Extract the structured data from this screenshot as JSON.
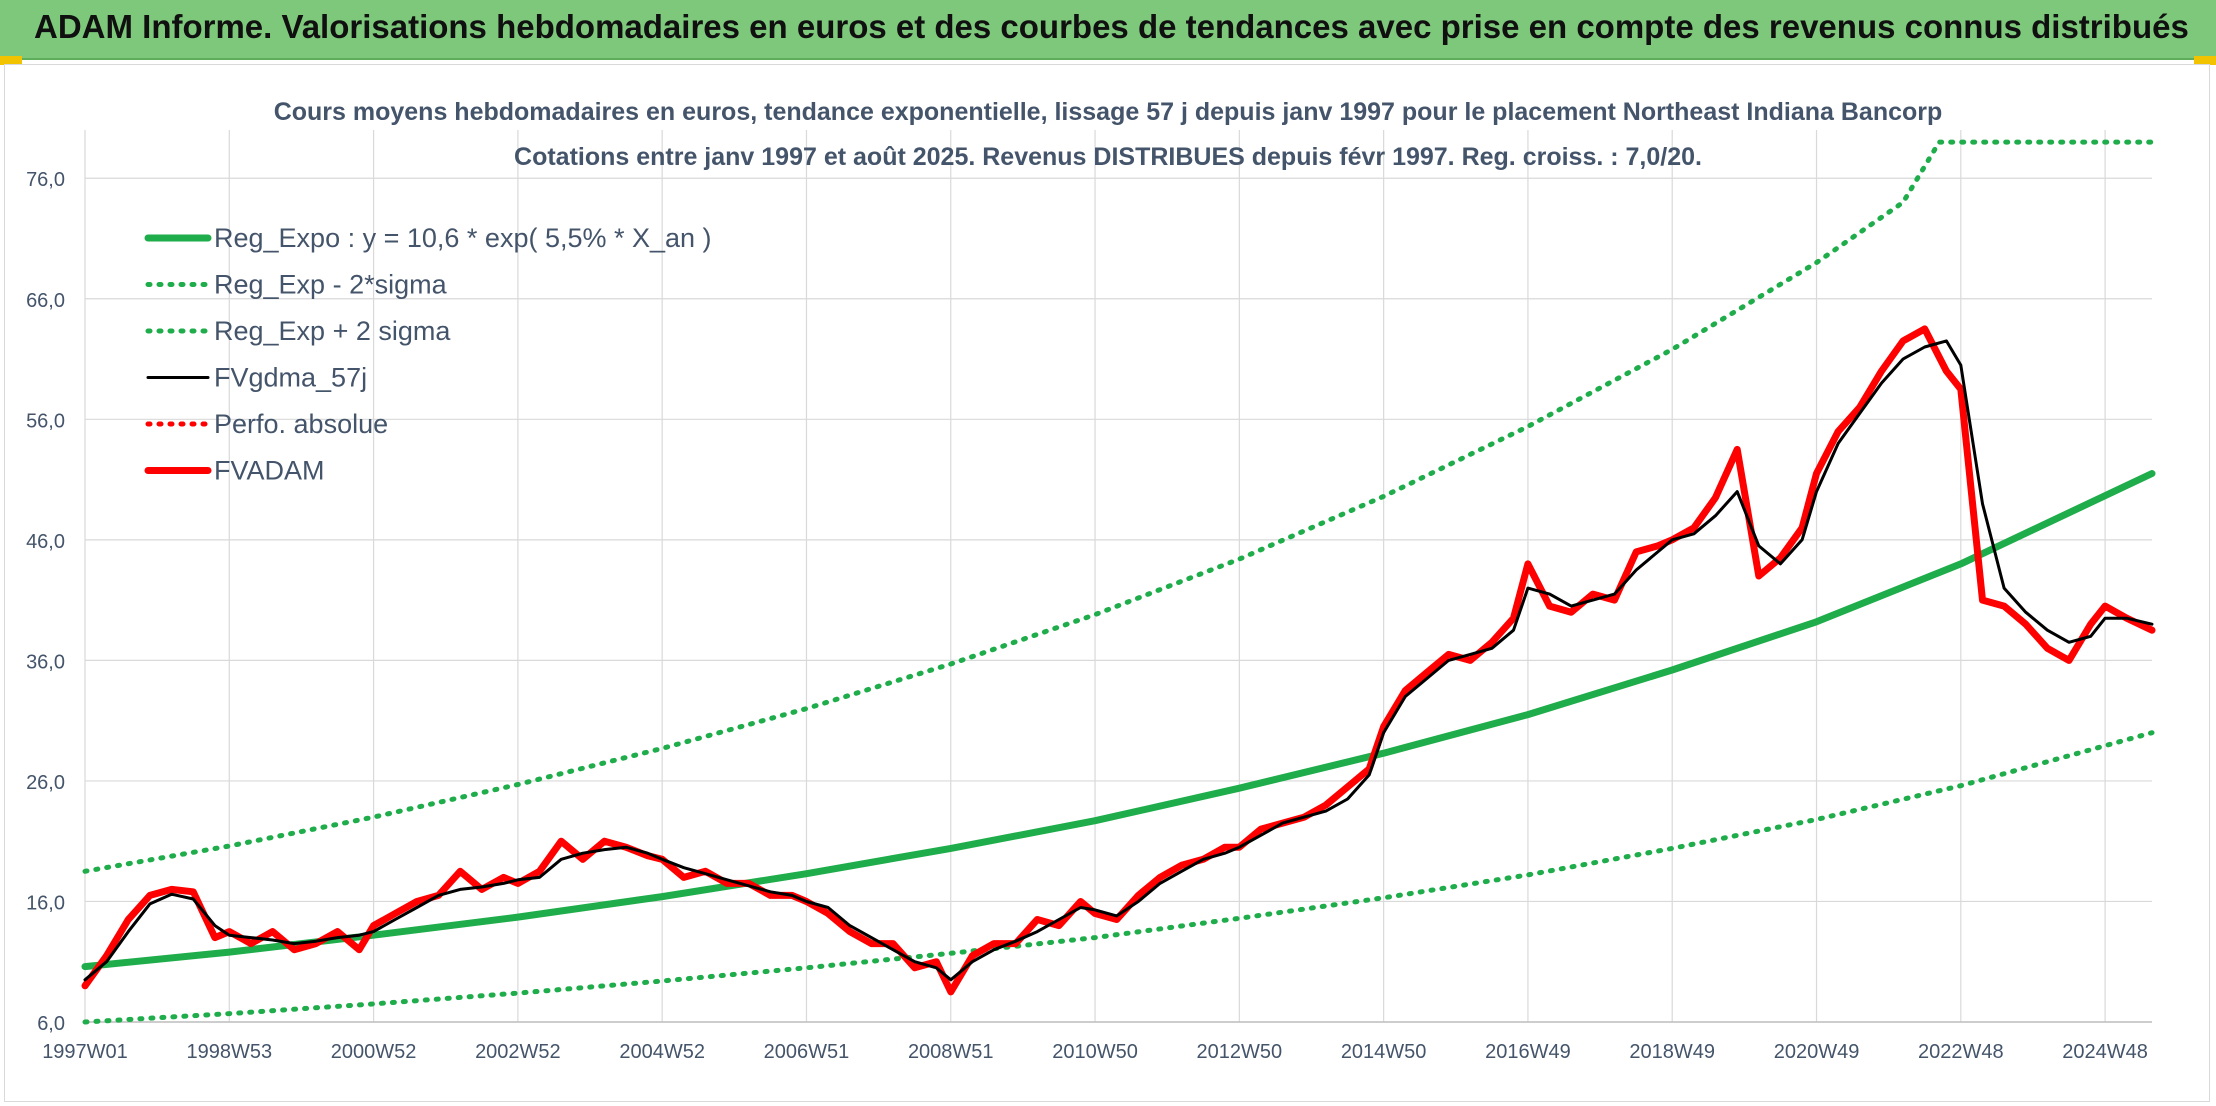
{
  "banner": {
    "title": "ADAM Informe. Valorisations hebdomadaires en euros et des courbes de tendances avec prise en compte des revenus connus distribués"
  },
  "colors": {
    "banner_bg": "#7dc87b",
    "reg_green": "#1fad4b",
    "fvgdma_black": "#000000",
    "fvadam_red": "#ff0000",
    "grid": "#d9d9d9",
    "text": "#44546a"
  },
  "chart_data": {
    "type": "line",
    "title": "Cours moyens hebdomadaires en euros, tendance exponentielle, lissage 57 j depuis janv 1997 pour le placement Northeast Indiana Bancorp",
    "subtitle": "Cotations entre janv 1997 et août 2025. Revenus DISTRIBUES depuis févr 1997. Reg. croiss. : 7,0/20.",
    "xlabel": "",
    "ylabel": "",
    "ylim": [
      6,
      80
    ],
    "xlim": [
      1997.0,
      2025.65
    ],
    "grid": true,
    "legend_position": "top-left",
    "y_ticks": [
      "6,0",
      "16,0",
      "26,0",
      "36,0",
      "46,0",
      "56,0",
      "66,0",
      "76,0"
    ],
    "y_tick_values": [
      6,
      16,
      26,
      36,
      46,
      56,
      66,
      76
    ],
    "x_ticks": [
      "1997W01",
      "1998W53",
      "2000W52",
      "2002W52",
      "2004W52",
      "2006W51",
      "2008W51",
      "2010W50",
      "2012W50",
      "2014W50",
      "2016W49",
      "2018W49",
      "2020W49",
      "2022W48",
      "2024W48"
    ],
    "x_tick_values": [
      1997.0,
      1999.0,
      2001.0,
      2003.0,
      2005.0,
      2007.0,
      2009.0,
      2011.0,
      2013.0,
      2015.0,
      2017.0,
      2019.0,
      2021.0,
      2023.0,
      2025.0
    ],
    "series": [
      {
        "name": "Reg_Expo : y = 10,6 * exp( 5,5% *  X_an )",
        "style": "solid-thick",
        "color": "#1fad4b",
        "x": [
          1997.0,
          1999.0,
          2001.0,
          2003.0,
          2005.0,
          2007.0,
          2009.0,
          2011.0,
          2013.0,
          2015.0,
          2017.0,
          2019.0,
          2021.0,
          2023.0,
          2025.65
        ],
        "y": [
          10.6,
          11.8,
          13.2,
          14.7,
          16.4,
          18.3,
          20.4,
          22.7,
          25.4,
          28.3,
          31.5,
          35.2,
          39.2,
          44.0,
          51.5
        ]
      },
      {
        "name": "Reg_Exp - 2*sigma",
        "style": "dotted",
        "color": "#1fad4b",
        "x": [
          1997.0,
          1999.0,
          2001.0,
          2003.0,
          2005.0,
          2007.0,
          2009.0,
          2011.0,
          2013.0,
          2015.0,
          2017.0,
          2019.0,
          2021.0,
          2023.0,
          2025.65
        ],
        "y": [
          6.0,
          6.7,
          7.5,
          8.4,
          9.4,
          10.5,
          11.7,
          13.0,
          14.6,
          16.3,
          18.2,
          20.4,
          22.8,
          25.6,
          30.0
        ]
      },
      {
        "name": "Reg_Exp + 2 sigma",
        "style": "dotted",
        "color": "#1fad4b",
        "x": [
          1997.0,
          1999.0,
          2001.0,
          2003.0,
          2005.0,
          2007.0,
          2009.0,
          2011.0,
          2013.0,
          2015.0,
          2017.0,
          2019.0,
          2021.0,
          2022.2,
          2022.7,
          2025.65
        ],
        "y": [
          18.5,
          20.6,
          23.0,
          25.7,
          28.7,
          32.0,
          35.7,
          39.8,
          44.4,
          49.6,
          55.4,
          61.8,
          69.0,
          74.0,
          79.0,
          79.0
        ]
      },
      {
        "name": "FVgdma_57j",
        "style": "solid",
        "color": "#000000",
        "x": [
          1997.0,
          1997.3,
          1997.6,
          1997.9,
          1998.2,
          1998.5,
          1998.8,
          1999.0,
          1999.3,
          1999.6,
          1999.9,
          2000.2,
          2000.5,
          2000.8,
          2001.0,
          2001.3,
          2001.6,
          2001.9,
          2002.2,
          2002.5,
          2002.8,
          2003.0,
          2003.3,
          2003.6,
          2003.9,
          2004.2,
          2004.5,
          2004.8,
          2005.0,
          2005.3,
          2005.6,
          2005.9,
          2006.2,
          2006.5,
          2006.8,
          2007.0,
          2007.3,
          2007.6,
          2007.9,
          2008.2,
          2008.5,
          2008.8,
          2009.0,
          2009.3,
          2009.6,
          2009.9,
          2010.2,
          2010.5,
          2010.8,
          2011.0,
          2011.3,
          2011.6,
          2011.9,
          2012.2,
          2012.5,
          2012.8,
          2013.0,
          2013.3,
          2013.6,
          2013.9,
          2014.2,
          2014.5,
          2014.8,
          2015.0,
          2015.3,
          2015.6,
          2015.9,
          2016.2,
          2016.5,
          2016.8,
          2017.0,
          2017.3,
          2017.6,
          2017.9,
          2018.2,
          2018.5,
          2018.8,
          2019.0,
          2019.3,
          2019.6,
          2019.9,
          2020.2,
          2020.5,
          2020.8,
          2021.0,
          2021.3,
          2021.6,
          2021.9,
          2022.2,
          2022.5,
          2022.8,
          2023.0,
          2023.3,
          2023.6,
          2023.9,
          2024.2,
          2024.5,
          2024.8,
          2025.0,
          2025.3,
          2025.65
        ],
        "y": [
          9.5,
          11.0,
          13.5,
          15.8,
          16.6,
          16.2,
          14.0,
          13.2,
          13.0,
          12.8,
          12.5,
          12.7,
          13.0,
          13.2,
          13.5,
          14.5,
          15.5,
          16.5,
          17.0,
          17.2,
          17.5,
          17.8,
          18.0,
          19.5,
          20.0,
          20.3,
          20.5,
          20.0,
          19.5,
          18.8,
          18.3,
          17.8,
          17.3,
          16.8,
          16.5,
          16.0,
          15.5,
          14.0,
          13.0,
          12.0,
          11.0,
          10.5,
          9.5,
          11.0,
          12.0,
          12.7,
          13.5,
          14.5,
          15.5,
          15.3,
          14.8,
          16.0,
          17.5,
          18.5,
          19.5,
          20.0,
          20.5,
          21.5,
          22.5,
          23.0,
          23.5,
          24.5,
          26.5,
          30.0,
          33.0,
          34.5,
          36.0,
          36.5,
          37.0,
          38.5,
          42.0,
          41.5,
          40.5,
          41.0,
          41.5,
          43.5,
          45.0,
          46.0,
          46.5,
          48.0,
          50.0,
          45.5,
          44.0,
          46.0,
          50.0,
          54.0,
          56.5,
          59.0,
          61.0,
          62.0,
          62.5,
          60.5,
          49.0,
          42.0,
          40.0,
          38.5,
          37.5,
          38.0,
          39.5,
          39.5,
          39.0
        ]
      },
      {
        "name": "Perfo. absolue",
        "style": "dotted",
        "color": "#ff0000",
        "x": [],
        "y": []
      },
      {
        "name": "FVADAM",
        "style": "solid-thick",
        "color": "#ff0000",
        "x": [
          1997.0,
          1997.3,
          1997.6,
          1997.9,
          1998.2,
          1998.5,
          1998.8,
          1999.0,
          1999.3,
          1999.6,
          1999.9,
          2000.2,
          2000.5,
          2000.8,
          2001.0,
          2001.3,
          2001.6,
          2001.9,
          2002.2,
          2002.5,
          2002.8,
          2003.0,
          2003.3,
          2003.6,
          2003.9,
          2004.2,
          2004.5,
          2004.8,
          2005.0,
          2005.3,
          2005.6,
          2005.9,
          2006.2,
          2006.5,
          2006.8,
          2007.0,
          2007.3,
          2007.6,
          2007.9,
          2008.2,
          2008.5,
          2008.8,
          2009.0,
          2009.3,
          2009.6,
          2009.9,
          2010.2,
          2010.5,
          2010.8,
          2011.0,
          2011.3,
          2011.6,
          2011.9,
          2012.2,
          2012.5,
          2012.8,
          2013.0,
          2013.3,
          2013.6,
          2013.9,
          2014.2,
          2014.5,
          2014.8,
          2015.0,
          2015.3,
          2015.6,
          2015.9,
          2016.2,
          2016.5,
          2016.8,
          2017.0,
          2017.3,
          2017.6,
          2017.9,
          2018.2,
          2018.5,
          2018.8,
          2019.0,
          2019.3,
          2019.6,
          2019.9,
          2020.2,
          2020.5,
          2020.8,
          2021.0,
          2021.3,
          2021.6,
          2021.9,
          2022.2,
          2022.5,
          2022.8,
          2023.0,
          2023.3,
          2023.6,
          2023.9,
          2024.2,
          2024.5,
          2024.8,
          2025.0,
          2025.3,
          2025.65
        ],
        "y": [
          9.0,
          11.5,
          14.5,
          16.5,
          17.0,
          16.8,
          13.0,
          13.5,
          12.5,
          13.5,
          12.0,
          12.5,
          13.5,
          12.0,
          14.0,
          15.0,
          16.0,
          16.5,
          18.5,
          17.0,
          18.0,
          17.5,
          18.5,
          21.0,
          19.5,
          21.0,
          20.5,
          19.8,
          19.5,
          18.0,
          18.5,
          17.5,
          17.5,
          16.5,
          16.5,
          16.0,
          15.0,
          13.5,
          12.5,
          12.5,
          10.5,
          11.0,
          8.5,
          11.5,
          12.5,
          12.5,
          14.5,
          14.0,
          16.0,
          15.0,
          14.5,
          16.5,
          18.0,
          19.0,
          19.5,
          20.5,
          20.5,
          22.0,
          22.5,
          23.0,
          24.0,
          25.5,
          27.0,
          30.5,
          33.5,
          35.0,
          36.5,
          36.0,
          37.5,
          39.5,
          44.0,
          40.5,
          40.0,
          41.5,
          41.0,
          45.0,
          45.5,
          46.0,
          47.0,
          49.5,
          53.5,
          43.0,
          44.5,
          47.0,
          51.5,
          55.0,
          57.0,
          60.0,
          62.5,
          63.5,
          60.0,
          58.5,
          41.0,
          40.5,
          39.0,
          37.0,
          36.0,
          39.0,
          40.5,
          39.5,
          38.5
        ]
      }
    ]
  }
}
